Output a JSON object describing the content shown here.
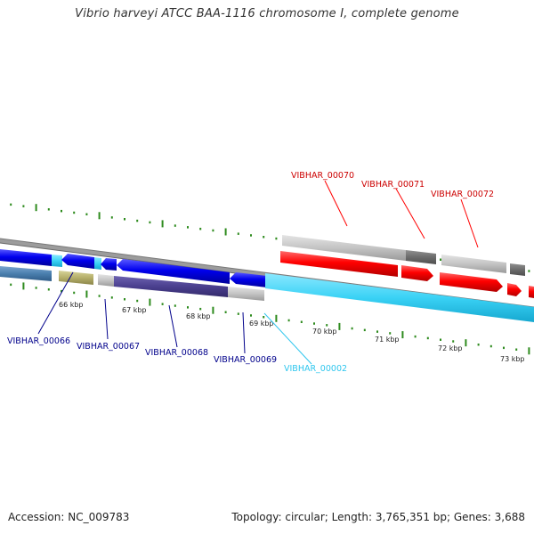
{
  "title": "Vibrio harveyi ATCC BAA-1116 chromosome I, complete genome",
  "footer": {
    "accession": "Accession: NC_009783",
    "summary": "Topology: circular; Length: 3,765,351 bp; Genes: 3,688"
  },
  "scale_labels": [
    "66 kbp",
    "67 kbp",
    "68 kbp",
    "69 kbp",
    "70 kbp",
    "71 kbp",
    "72 kbp",
    "73 kbp"
  ],
  "gene_labels": {
    "forward": [
      "VIBHAR_00070",
      "VIBHAR_00071",
      "VIBHAR_00072"
    ],
    "reverse": [
      "VIBHAR_00066",
      "VIBHAR_00067",
      "VIBHAR_00068",
      "VIBHAR_00069"
    ],
    "other": [
      "VIBHAR_00002"
    ]
  },
  "colors": {
    "forward_cds": "#ff0000",
    "reverse_cds": "#0000ee",
    "gene_span": "#bdbdbd",
    "gene_span_dark": "#6e6e6e",
    "contig": "#3ad2f5",
    "contig_dark": "#4a7fae",
    "tick": "#2e8b1e",
    "reverse_label": "#00008b",
    "forward_label": "#cc0000",
    "other_label": "#2ec6ee"
  }
}
